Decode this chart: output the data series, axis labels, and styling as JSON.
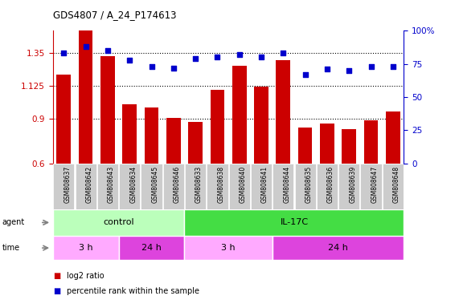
{
  "title": "GDS4807 / A_24_P174613",
  "samples": [
    "GSM808637",
    "GSM808642",
    "GSM808643",
    "GSM808634",
    "GSM808645",
    "GSM808646",
    "GSM808633",
    "GSM808638",
    "GSM808640",
    "GSM808641",
    "GSM808644",
    "GSM808635",
    "GSM808636",
    "GSM808639",
    "GSM808647",
    "GSM808648"
  ],
  "log2_ratio": [
    1.2,
    1.5,
    1.33,
    1.0,
    0.98,
    0.91,
    0.88,
    1.1,
    1.26,
    1.12,
    1.3,
    0.84,
    0.87,
    0.83,
    0.89,
    0.95
  ],
  "percentile": [
    83,
    88,
    85,
    78,
    73,
    72,
    79,
    80,
    82,
    80,
    83,
    67,
    71,
    70,
    73,
    73
  ],
  "ylim_left": [
    0.6,
    1.5
  ],
  "ylim_right": [
    0,
    100
  ],
  "yticks_left": [
    0.6,
    0.9,
    1.125,
    1.35
  ],
  "ytick_labels_left": [
    "0.6",
    "0.9",
    "1.125",
    "1.35"
  ],
  "yticks_right": [
    0,
    25,
    50,
    75,
    100
  ],
  "ytick_labels_right": [
    "0",
    "25",
    "50",
    "75",
    "100%"
  ],
  "hlines": [
    0.9,
    1.125,
    1.35
  ],
  "bar_color": "#cc0000",
  "dot_color": "#0000cc",
  "agent_labels": [
    "control",
    "IL-17C"
  ],
  "agent_col_spans": [
    6,
    10
  ],
  "agent_colors": [
    "#bbffbb",
    "#44dd44"
  ],
  "time_labels": [
    "3 h",
    "24 h",
    "3 h",
    "24 h"
  ],
  "time_col_spans": [
    3,
    3,
    4,
    6
  ],
  "time_colors": [
    "#ffaaff",
    "#dd44dd",
    "#ffaaff",
    "#dd44dd"
  ],
  "legend_bar_color": "#cc0000",
  "legend_dot_color": "#0000cc",
  "legend_bar_label": "log2 ratio",
  "legend_dot_label": "percentile rank within the sample",
  "xlabel_color": "#cc0000",
  "ylabel_right_color": "#0000cc",
  "background_color": "#ffffff",
  "xtick_bg_color": "#cccccc"
}
